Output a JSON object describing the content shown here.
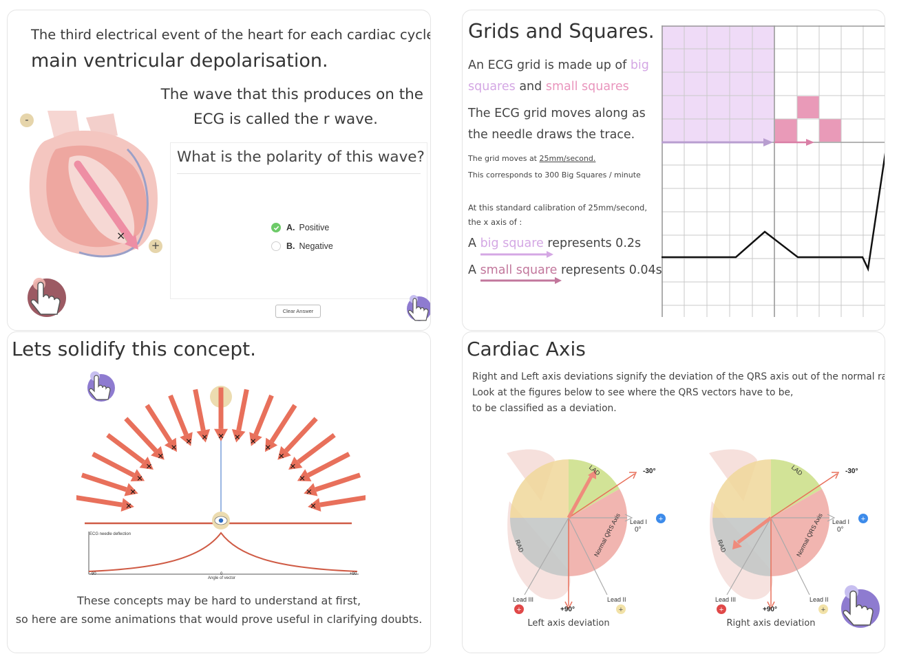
{
  "panel1": {
    "line1": "The third electrical event of the heart for each cardiac cycle is",
    "line2": "main ventricular depolarisation.",
    "wave_line1": "The wave that this produces on the",
    "wave_line2": "ECG is called the r wave.",
    "quiz": {
      "question": "What is the polarity of this wave?",
      "options": [
        {
          "letter": "A.",
          "label": "Positive",
          "selected": true
        },
        {
          "letter": "B.",
          "label": "Negative",
          "selected": false
        }
      ],
      "clear_label": "Clear Answer"
    },
    "minus_sign": "-",
    "plus_sign": "+",
    "cross_sign": "×"
  },
  "panel2": {
    "title": "Grids and Squares.",
    "line1_pre": "An ECG grid is made up of",
    "line1_big": "big",
    "line2_squares": "squares",
    "line2_and": "and",
    "line2_small": "small squares",
    "line3": "The ECG grid moves along as",
    "line4": "the needle draws the trace.",
    "speed_pre": "The grid moves at",
    "speed_value": "25mm/second.",
    "corresponds": "This corresponds to 300 Big Squares / minute",
    "calib1": "At this standard calibration of 25mm/second,",
    "calib2": "the x axis of :",
    "big_a": "A",
    "big_term": "big square",
    "big_value": "represents 0.2s",
    "small_a": "A",
    "small_term": "small square",
    "small_value": "represents 0.04s"
  },
  "panel3": {
    "title": "Lets solidify this concept.",
    "plot_label": "ECG needle deflection",
    "axis_min": "-90",
    "axis_zero": "0",
    "axis_max": "+90",
    "axis_label": "Angle of vector",
    "caption1": "These concepts may be hard to understand at first,",
    "caption2": "so here are some animations that would prove useful in clarifying doubts."
  },
  "panel4": {
    "title": "Cardiac Axis",
    "line1": "Right and Left axis deviations signify the deviation of the QRS axis out of the normal range.",
    "line2": "Look at the figures below to see where the QRS vectors have to be,",
    "line3": "to be classified as a deviation.",
    "diagrams": [
      {
        "caption": "Left axis deviation"
      },
      {
        "caption": "Right axis deviation"
      }
    ],
    "labels": {
      "lad": "LAD",
      "rad": "RAD",
      "normal": "Normal QRS Axis",
      "minus30": "-30°",
      "lead1": "Lead I",
      "zero": "0°",
      "lead2": "Lead II",
      "lead3": "Lead III",
      "plus90": "+90°"
    }
  },
  "colors": {
    "accent_green": "#6dca68",
    "pink_light": "#d4a7e4",
    "pink": "#e995bd",
    "arrow_red": "#e8705b",
    "lavender": "#8e7bd0",
    "axis_blue": "#3d8bea",
    "axis_red": "#e04848"
  }
}
